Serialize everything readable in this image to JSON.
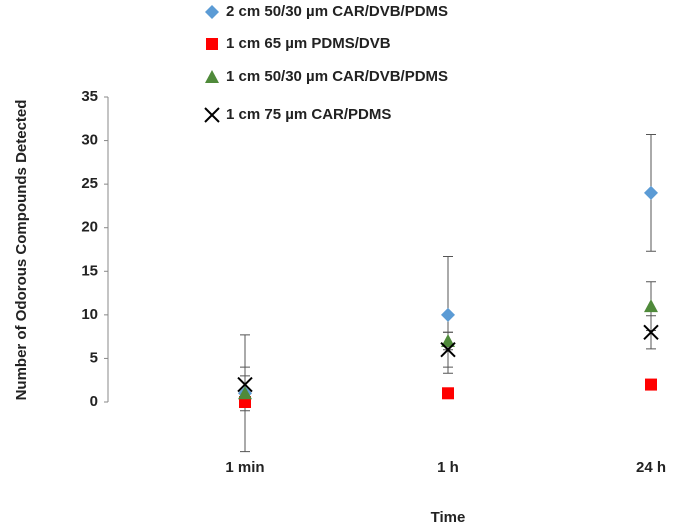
{
  "chart_data": {
    "type": "scatter",
    "y_label": "Number of Odorous Compounds Detected",
    "x_label": "Time",
    "categories": [
      "1 min",
      "1 h",
      "24 h"
    ],
    "ylim": [
      0,
      35
    ],
    "yticks": [
      0,
      5,
      10,
      15,
      20,
      25,
      30,
      35
    ],
    "grid": false,
    "series": [
      {
        "name": "2 cm 50/30 µm CAR/DVB/PDMS",
        "color": "#5b9bd5",
        "marker": "diamond",
        "values": [
          1,
          10,
          24
        ],
        "errors": [
          6.7,
          6.7,
          6.7
        ]
      },
      {
        "name": "1 cm 65 µm PDMS/DVB",
        "color": "#ff0000",
        "marker": "square",
        "values": [
          0,
          1,
          2
        ],
        "errors": [
          0.5,
          0.5,
          0.5
        ]
      },
      {
        "name": "1 cm 50/30 µm CAR/DVB/PDMS",
        "color": "#4f8a3a",
        "marker": "triangle",
        "values": [
          1,
          7,
          11
        ],
        "errors": [
          2,
          1,
          2.8
        ]
      },
      {
        "name": "1 cm 75 µm CAR/PDMS",
        "color": "#000000",
        "marker": "x",
        "values": [
          2,
          6,
          8
        ],
        "errors": [
          2,
          2,
          1.9
        ]
      }
    ]
  }
}
